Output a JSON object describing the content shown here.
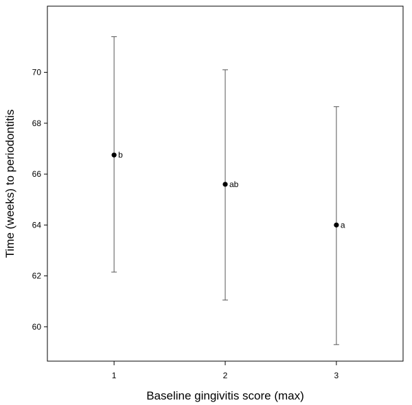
{
  "chart_data": {
    "type": "scatter",
    "title": "",
    "xlabel": "Baseline gingivitis score (max)",
    "ylabel": "Time (weeks) to periodontitis",
    "xlim": [
      0.4,
      3.6
    ],
    "ylim": [
      58.65,
      72.6
    ],
    "x_ticks": [
      1,
      2,
      3
    ],
    "y_ticks": [
      60,
      62,
      64,
      66,
      68,
      70
    ],
    "grid": false,
    "legend": "none",
    "colors": {
      "marker": "#000000",
      "errorbar": "#555555",
      "axis": "#000000"
    },
    "points": [
      {
        "x": 1,
        "y": 66.75,
        "lower": 62.15,
        "upper": 71.4,
        "label": "b"
      },
      {
        "x": 2,
        "y": 65.6,
        "lower": 61.05,
        "upper": 70.1,
        "label": "ab"
      },
      {
        "x": 3,
        "y": 64.0,
        "lower": 59.3,
        "upper": 68.65,
        "label": "a"
      }
    ]
  }
}
